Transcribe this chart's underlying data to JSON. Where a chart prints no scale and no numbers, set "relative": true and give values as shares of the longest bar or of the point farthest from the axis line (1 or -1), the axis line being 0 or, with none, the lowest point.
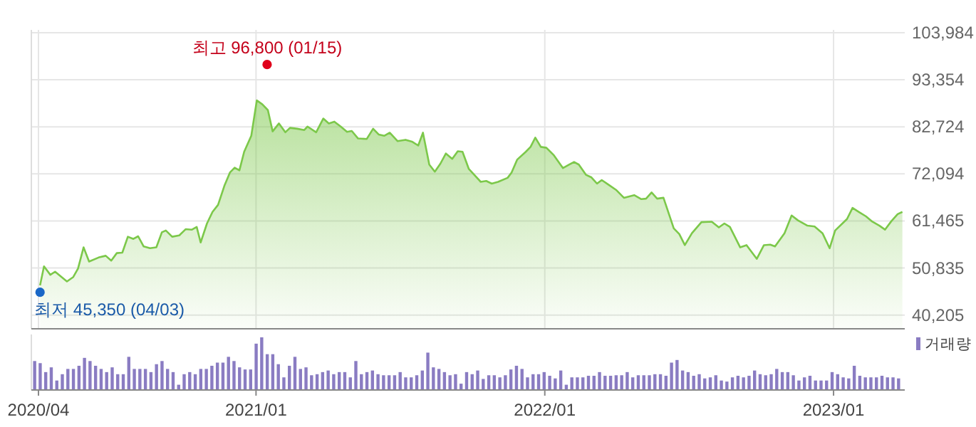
{
  "chart_data": [
    {
      "type": "area",
      "grid": true,
      "tick_labels": "y",
      "xlim": [
        "2020-03-23",
        "2023-04-01"
      ],
      "xticks": [
        {
          "value": "2020-04-01",
          "label": null
        },
        {
          "value": "2021-01-01",
          "label": null
        },
        {
          "value": "2022-01-01",
          "label": null
        },
        {
          "value": "2023-01-01",
          "label": null
        }
      ],
      "ylim": [
        37100,
        103984
      ],
      "yticks": [
        {
          "value": 40205,
          "label": "40,205"
        },
        {
          "value": 50835,
          "label": "50,835"
        },
        {
          "value": 61465,
          "label": "61,465"
        },
        {
          "value": 72094,
          "label": "72,094"
        },
        {
          "value": 82724,
          "label": "82,724"
        },
        {
          "value": 93354,
          "label": "93,354"
        },
        {
          "value": 103984,
          "label": "103,984"
        }
      ],
      "annotations": [
        {
          "text": "최고 96,800 (01/15)",
          "x": "2021-01-15",
          "y": 96800
        },
        {
          "text": "최저 45,350 (04/03)",
          "x": "2020-04-03",
          "y": 45350
        }
      ],
      "series": [
        {
          "color": "#7cc84a",
          "x": [
            "2020-04-03",
            "2020-04-08",
            "2020-04-16",
            "2020-04-22",
            "2020-05-07",
            "2020-05-15",
            "2020-05-21",
            "2020-05-28",
            "2020-06-04",
            "2020-06-16",
            "2020-06-25",
            "2020-07-02",
            "2020-07-09",
            "2020-07-16",
            "2020-07-23",
            "2020-07-30",
            "2020-08-05",
            "2020-08-12",
            "2020-08-20",
            "2020-08-28",
            "2020-09-04",
            "2020-09-09",
            "2020-09-17",
            "2020-09-26",
            "2020-10-04",
            "2020-10-12",
            "2020-10-18",
            "2020-10-23",
            "2020-10-31",
            "2020-11-07",
            "2020-11-14",
            "2020-11-22",
            "2020-11-29",
            "2020-12-05",
            "2020-12-11",
            "2020-12-17",
            "2020-12-26",
            "2021-01-02",
            "2021-01-09",
            "2021-01-16",
            "2021-01-22",
            "2021-01-30",
            "2021-02-07",
            "2021-02-13",
            "2021-02-22",
            "2021-03-03",
            "2021-03-07",
            "2021-03-18",
            "2021-03-27",
            "2021-04-03",
            "2021-04-10",
            "2021-04-18",
            "2021-04-26",
            "2021-05-02",
            "2021-05-10",
            "2021-05-21",
            "2021-05-29",
            "2021-06-05",
            "2021-06-12",
            "2021-06-19",
            "2021-06-29",
            "2021-07-09",
            "2021-07-17",
            "2021-07-25",
            "2021-07-31",
            "2021-08-08",
            "2021-08-15",
            "2021-08-22",
            "2021-08-29",
            "2021-09-06",
            "2021-09-13",
            "2021-09-19",
            "2021-09-27",
            "2021-10-12",
            "2021-10-19",
            "2021-10-26",
            "2021-11-03",
            "2021-11-15",
            "2021-11-20",
            "2021-11-27",
            "2021-12-08",
            "2021-12-14",
            "2021-12-20",
            "2021-12-27",
            "2022-01-03",
            "2022-01-12",
            "2022-01-24",
            "2022-02-01",
            "2022-02-07",
            "2022-02-13",
            "2022-02-22",
            "2022-03-01",
            "2022-03-08",
            "2022-03-14",
            "2022-03-23",
            "2022-04-01",
            "2022-04-11",
            "2022-04-24",
            "2022-05-03",
            "2022-05-09",
            "2022-05-16",
            "2022-05-23",
            "2022-05-31",
            "2022-06-13",
            "2022-06-20",
            "2022-06-27",
            "2022-07-06",
            "2022-07-18",
            "2022-07-31",
            "2022-08-09",
            "2022-08-16",
            "2022-08-23",
            "2022-09-05",
            "2022-09-13",
            "2022-09-26",
            "2022-10-05",
            "2022-10-13",
            "2022-10-19",
            "2022-10-31",
            "2022-11-09",
            "2022-11-17",
            "2022-11-29",
            "2022-12-08",
            "2022-12-18",
            "2022-12-27",
            "2023-01-03",
            "2023-01-18",
            "2023-01-25",
            "2023-02-02",
            "2023-02-11",
            "2023-02-19",
            "2023-02-28",
            "2023-03-07",
            "2023-03-15",
            "2023-03-23",
            "2023-03-29"
          ],
          "type": "area",
          "values": [
            46900,
            51200,
            49300,
            50000,
            47800,
            48800,
            50700,
            55500,
            52300,
            53200,
            53600,
            52500,
            54200,
            54300,
            57900,
            57400,
            58000,
            55700,
            55300,
            55500,
            58900,
            59300,
            57900,
            58200,
            59600,
            59500,
            60100,
            56600,
            60900,
            63500,
            65100,
            69400,
            72400,
            73500,
            72900,
            77100,
            80700,
            88700,
            87800,
            86500,
            81700,
            83500,
            81500,
            82500,
            82300,
            82000,
            82800,
            81500,
            84600,
            83500,
            83900,
            82800,
            81600,
            81800,
            80100,
            80000,
            82300,
            81000,
            80700,
            81400,
            79500,
            79800,
            79400,
            78500,
            81400,
            74200,
            72600,
            74400,
            76700,
            75500,
            77200,
            77100,
            73200,
            70300,
            70500,
            69900,
            70300,
            71200,
            72400,
            75300,
            77100,
            78200,
            80300,
            78200,
            78000,
            76400,
            73400,
            74200,
            74800,
            74200,
            71900,
            71300,
            69900,
            70700,
            69600,
            68500,
            66700,
            67300,
            66400,
            66500,
            67900,
            66500,
            66700,
            59800,
            58500,
            56000,
            58700,
            61200,
            61300,
            60000,
            60900,
            60100,
            55500,
            56000,
            52900,
            56000,
            56100,
            55700,
            58700,
            62700,
            61600,
            60400,
            60200,
            58700,
            55300,
            59300,
            61900,
            64400,
            63500,
            62500,
            61300,
            60400,
            59500,
            61400,
            63000,
            63500
          ]
        },
        {
          "type": "scatter",
          "color": "#e0001b",
          "x": [
            "2021-01-15"
          ],
          "values": [
            96800
          ]
        },
        {
          "type": "scatter",
          "color": "#1a67c7",
          "x": [
            "2020-04-03"
          ],
          "values": [
            45350
          ]
        }
      ]
    },
    {
      "type": "bar",
      "relative": true,
      "tick_labels": "x",
      "legend": "top right",
      "xlim": [
        "2020-03-23",
        "2023-04-01"
      ],
      "xticks": [
        {
          "value": "2020-04-01",
          "label": "2020/04"
        },
        {
          "value": "2021-01-01",
          "label": "2021/01"
        },
        {
          "value": "2022-01-01",
          "label": "2022/01"
        },
        {
          "value": "2023-01-01",
          "label": "2023/01"
        }
      ],
      "series": [
        {
          "name": "거래량",
          "color": "#8a7cc2",
          "x": [
            "2020-03-27",
            "2020-04-03",
            "2020-04-10",
            "2020-04-17",
            "2020-04-24",
            "2020-05-01",
            "2020-05-08",
            "2020-05-15",
            "2020-05-22",
            "2020-05-29",
            "2020-06-05",
            "2020-06-12",
            "2020-06-19",
            "2020-06-26",
            "2020-07-03",
            "2020-07-10",
            "2020-07-17",
            "2020-07-24",
            "2020-07-31",
            "2020-08-07",
            "2020-08-14",
            "2020-08-21",
            "2020-08-28",
            "2020-09-04",
            "2020-09-11",
            "2020-09-18",
            "2020-09-25",
            "2020-10-02",
            "2020-10-09",
            "2020-10-16",
            "2020-10-23",
            "2020-10-30",
            "2020-11-06",
            "2020-11-13",
            "2020-11-20",
            "2020-11-27",
            "2020-12-04",
            "2020-12-11",
            "2020-12-18",
            "2020-12-25",
            "2021-01-01",
            "2021-01-08",
            "2021-01-15",
            "2021-01-22",
            "2021-01-29",
            "2021-02-05",
            "2021-02-12",
            "2021-02-19",
            "2021-02-26",
            "2021-03-05",
            "2021-03-12",
            "2021-03-19",
            "2021-03-26",
            "2021-04-02",
            "2021-04-09",
            "2021-04-16",
            "2021-04-23",
            "2021-04-30",
            "2021-05-07",
            "2021-05-14",
            "2021-05-21",
            "2021-05-28",
            "2021-06-04",
            "2021-06-11",
            "2021-06-18",
            "2021-06-25",
            "2021-07-02",
            "2021-07-09",
            "2021-07-16",
            "2021-07-23",
            "2021-07-30",
            "2021-08-06",
            "2021-08-13",
            "2021-08-20",
            "2021-08-27",
            "2021-09-03",
            "2021-09-10",
            "2021-09-17",
            "2021-09-24",
            "2021-10-01",
            "2021-10-08",
            "2021-10-15",
            "2021-10-22",
            "2021-10-29",
            "2021-11-05",
            "2021-11-12",
            "2021-11-19",
            "2021-11-26",
            "2021-12-03",
            "2021-12-10",
            "2021-12-17",
            "2021-12-24",
            "2021-12-31",
            "2022-01-07",
            "2022-01-14",
            "2022-01-21",
            "2022-01-28",
            "2022-02-04",
            "2022-02-11",
            "2022-02-18",
            "2022-02-25",
            "2022-03-04",
            "2022-03-11",
            "2022-03-18",
            "2022-03-25",
            "2022-04-01",
            "2022-04-08",
            "2022-04-15",
            "2022-04-22",
            "2022-04-29",
            "2022-05-06",
            "2022-05-13",
            "2022-05-20",
            "2022-05-27",
            "2022-06-03",
            "2022-06-10",
            "2022-06-17",
            "2022-06-24",
            "2022-07-01",
            "2022-07-08",
            "2022-07-15",
            "2022-07-22",
            "2022-07-29",
            "2022-08-05",
            "2022-08-12",
            "2022-08-19",
            "2022-08-26",
            "2022-09-02",
            "2022-09-09",
            "2022-09-16",
            "2022-09-23",
            "2022-09-30",
            "2022-10-07",
            "2022-10-14",
            "2022-10-21",
            "2022-10-28",
            "2022-11-04",
            "2022-11-11",
            "2022-11-18",
            "2022-11-25",
            "2022-12-02",
            "2022-12-09",
            "2022-12-16",
            "2022-12-23",
            "2022-12-30",
            "2023-01-06",
            "2023-01-13",
            "2023-01-20",
            "2023-01-27",
            "2023-02-03",
            "2023-02-10",
            "2023-02-17",
            "2023-02-24",
            "2023-03-03",
            "2023-03-10",
            "2023-03-17",
            "2023-03-24"
          ],
          "values": [
            0.55,
            0.51,
            0.34,
            0.43,
            0.18,
            0.3,
            0.4,
            0.4,
            0.46,
            0.61,
            0.55,
            0.46,
            0.4,
            0.34,
            0.43,
            0.3,
            0.3,
            0.63,
            0.4,
            0.4,
            0.4,
            0.34,
            0.49,
            0.55,
            0.4,
            0.34,
            0.1,
            0.3,
            0.34,
            0.3,
            0.4,
            0.4,
            0.46,
            0.52,
            0.52,
            0.63,
            0.55,
            0.43,
            0.39,
            0.39,
            0.88,
            1,
            0.68,
            0.68,
            0.49,
            0.24,
            0.46,
            0.63,
            0.4,
            0.43,
            0.28,
            0.3,
            0.34,
            0.37,
            0.3,
            0.34,
            0.34,
            0.24,
            0.55,
            0.3,
            0.34,
            0.37,
            0.3,
            0.28,
            0.28,
            0.28,
            0.34,
            0.24,
            0.24,
            0.28,
            0.37,
            0.71,
            0.43,
            0.4,
            0.34,
            0.28,
            0.3,
            0.12,
            0.34,
            0.3,
            0.37,
            0.21,
            0.28,
            0.28,
            0.24,
            0.28,
            0.39,
            0.46,
            0.4,
            0.24,
            0.3,
            0.3,
            0.34,
            0.27,
            0.22,
            0.37,
            0.1,
            0.24,
            0.24,
            0.24,
            0.27,
            0.27,
            0.34,
            0.27,
            0.27,
            0.28,
            0.28,
            0.34,
            0.24,
            0.28,
            0.28,
            0.28,
            0.3,
            0.3,
            0.27,
            0.52,
            0.57,
            0.37,
            0.34,
            0.27,
            0.3,
            0.22,
            0.24,
            0.28,
            0.18,
            0.16,
            0.24,
            0.27,
            0.24,
            0.27,
            0.37,
            0.3,
            0.28,
            0.3,
            0.4,
            0.34,
            0.34,
            0.28,
            0.18,
            0.24,
            0.27,
            0.18,
            0.18,
            0.18,
            0.34,
            0.3,
            0.24,
            0.22,
            0.46,
            0.27,
            0.24,
            0.24,
            0.24,
            0.27,
            0.24,
            0.24,
            0.22
          ]
        }
      ]
    }
  ]
}
